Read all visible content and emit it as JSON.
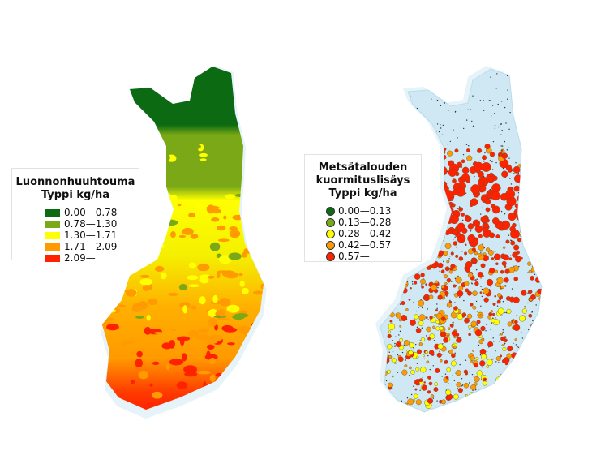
{
  "colors": {
    "water": "#dff0f8",
    "base_right": "#cfe8f4"
  },
  "legend_left": {
    "title_line1": "Luonnonhuuhtouma",
    "title_line2": "Typpi kg/ha",
    "items": [
      {
        "label": "0.00—0.78",
        "color": "#0b6a12"
      },
      {
        "label": "0.78—1.30",
        "color": "#7aa816"
      },
      {
        "label": "1.30—1.71",
        "color": "#ffff00"
      },
      {
        "label": "1.71—2.09",
        "color": "#ff9a00"
      },
      {
        "label": "2.09—",
        "color": "#ff2200"
      }
    ]
  },
  "legend_right": {
    "title_line1": "Metsätalouden",
    "title_line2": "kuormituslisäys",
    "title_line3": "Typpi kg/ha",
    "items": [
      {
        "label": "0.00—0.13",
        "color": "#0b6a12"
      },
      {
        "label": "0.13—0.28",
        "color": "#7aa816"
      },
      {
        "label": "0.28—0.42",
        "color": "#ffff00"
      },
      {
        "label": "0.42—0.57",
        "color": "#ff9a00"
      },
      {
        "label": "0.57—",
        "color": "#ff2200"
      }
    ]
  }
}
